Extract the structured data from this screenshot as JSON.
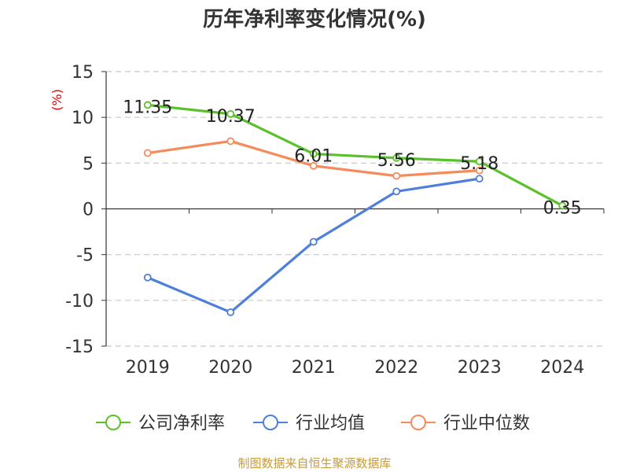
{
  "chart_data": {
    "type": "line",
    "title": "历年净利率变化情况(%)",
    "ylabel": "(%)",
    "xlabel": "",
    "categories": [
      "2019",
      "2020",
      "2021",
      "2022",
      "2023",
      "2024"
    ],
    "ylim": [
      -15,
      15
    ],
    "yticks": [
      15,
      10,
      5,
      0,
      -5,
      -10,
      -15
    ],
    "grid": true,
    "legend_position": "bottom",
    "series": [
      {
        "name": "公司净利率",
        "color": "#5ac12b",
        "values": [
          11.35,
          10.37,
          6.01,
          5.56,
          5.18,
          0.35
        ],
        "labels": [
          "11.35",
          "10.37",
          "6.01",
          "5.56",
          "5.18",
          "0.35"
        ]
      },
      {
        "name": "行业均值",
        "color": "#4f7fdc",
        "values": [
          -7.5,
          -11.3,
          -3.6,
          1.9,
          3.3,
          null
        ],
        "labels": []
      },
      {
        "name": "行业中位数",
        "color": "#f58b5b",
        "values": [
          6.1,
          7.4,
          4.7,
          3.6,
          4.2,
          null
        ],
        "labels": []
      }
    ]
  },
  "source": "制图数据来自恒生聚源数据库"
}
